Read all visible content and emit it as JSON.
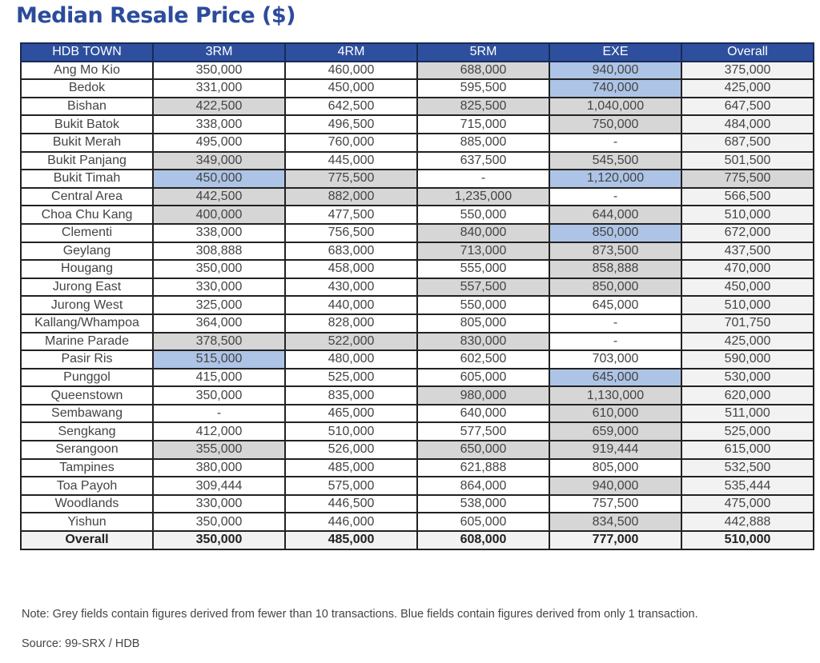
{
  "title": "Median Resale Price ($)",
  "colors": {
    "header": "#2e4f9e",
    "grey_fill": "#d6d6d6",
    "blue_fill": "#adc4e6",
    "title": "#2c4b9b"
  },
  "chart_data": {
    "type": "table",
    "title": "Median Resale Price ($)",
    "columns": [
      "HDB TOWN",
      "3RM",
      "4RM",
      "5RM",
      "EXE",
      "Overall"
    ],
    "rows": [
      {
        "town": "Ang Mo Kio",
        "values": [
          "350,000",
          "460,000",
          "688,000",
          "940,000",
          "375,000"
        ],
        "fill": [
          "",
          "",
          "grey",
          "blue",
          ""
        ]
      },
      {
        "town": "Bedok",
        "values": [
          "331,000",
          "450,000",
          "595,500",
          "740,000",
          "425,000"
        ],
        "fill": [
          "",
          "",
          "",
          "blue",
          ""
        ]
      },
      {
        "town": "Bishan",
        "values": [
          "422,500",
          "642,500",
          "825,500",
          "1,040,000",
          "647,500"
        ],
        "fill": [
          "grey",
          "",
          "grey",
          "grey",
          ""
        ]
      },
      {
        "town": "Bukit Batok",
        "values": [
          "338,000",
          "496,500",
          "715,000",
          "750,000",
          "484,000"
        ],
        "fill": [
          "",
          "",
          "",
          "grey",
          ""
        ]
      },
      {
        "town": "Bukit Merah",
        "values": [
          "495,000",
          "760,000",
          "885,000",
          "-",
          "687,500"
        ],
        "fill": [
          "",
          "",
          "",
          "",
          ""
        ]
      },
      {
        "town": "Bukit Panjang",
        "values": [
          "349,000",
          "445,000",
          "637,500",
          "545,500",
          "501,500"
        ],
        "fill": [
          "grey",
          "",
          "",
          "grey",
          ""
        ]
      },
      {
        "town": "Bukit Timah",
        "values": [
          "450,000",
          "775,500",
          "-",
          "1,120,000",
          "775,500"
        ],
        "fill": [
          "blue",
          "grey",
          "",
          "blue",
          "grey"
        ]
      },
      {
        "town": "Central Area",
        "values": [
          "442,500",
          "882,000",
          "1,235,000",
          "-",
          "566,500"
        ],
        "fill": [
          "grey",
          "grey",
          "grey",
          "",
          ""
        ]
      },
      {
        "town": "Choa Chu Kang",
        "values": [
          "400,000",
          "477,500",
          "550,000",
          "644,000",
          "510,000"
        ],
        "fill": [
          "grey",
          "",
          "",
          "grey",
          ""
        ]
      },
      {
        "town": "Clementi",
        "values": [
          "338,000",
          "756,500",
          "840,000",
          "850,000",
          "672,000"
        ],
        "fill": [
          "",
          "",
          "grey",
          "blue",
          ""
        ]
      },
      {
        "town": "Geylang",
        "values": [
          "308,888",
          "683,000",
          "713,000",
          "873,500",
          "437,500"
        ],
        "fill": [
          "",
          "",
          "grey",
          "grey",
          ""
        ]
      },
      {
        "town": "Hougang",
        "values": [
          "350,000",
          "458,000",
          "555,000",
          "858,888",
          "470,000"
        ],
        "fill": [
          "",
          "",
          "",
          "grey",
          ""
        ]
      },
      {
        "town": "Jurong East",
        "values": [
          "330,000",
          "430,000",
          "557,500",
          "850,000",
          "450,000"
        ],
        "fill": [
          "",
          "",
          "grey",
          "grey",
          ""
        ]
      },
      {
        "town": "Jurong West",
        "values": [
          "325,000",
          "440,000",
          "550,000",
          "645,000",
          "510,000"
        ],
        "fill": [
          "",
          "",
          "",
          "",
          ""
        ]
      },
      {
        "town": "Kallang/Whampoa",
        "values": [
          "364,000",
          "828,000",
          "805,000",
          "-",
          "701,750"
        ],
        "fill": [
          "",
          "",
          "",
          "",
          ""
        ]
      },
      {
        "town": "Marine Parade",
        "values": [
          "378,500",
          "522,000",
          "830,000",
          "-",
          "425,000"
        ],
        "fill": [
          "grey",
          "grey",
          "grey",
          "",
          ""
        ]
      },
      {
        "town": "Pasir Ris",
        "values": [
          "515,000",
          "480,000",
          "602,500",
          "703,000",
          "590,000"
        ],
        "fill": [
          "blue",
          "",
          "",
          "",
          ""
        ]
      },
      {
        "town": "Punggol",
        "values": [
          "415,000",
          "525,000",
          "605,000",
          "645,000",
          "530,000"
        ],
        "fill": [
          "",
          "",
          "",
          "blue",
          ""
        ]
      },
      {
        "town": "Queenstown",
        "values": [
          "350,000",
          "835,000",
          "980,000",
          "1,130,000",
          "620,000"
        ],
        "fill": [
          "",
          "",
          "grey",
          "grey",
          ""
        ]
      },
      {
        "town": "Sembawang",
        "values": [
          "-",
          "465,000",
          "640,000",
          "610,000",
          "511,000"
        ],
        "fill": [
          "",
          "",
          "",
          "grey",
          ""
        ]
      },
      {
        "town": "Sengkang",
        "values": [
          "412,000",
          "510,000",
          "577,500",
          "659,000",
          "525,000"
        ],
        "fill": [
          "",
          "",
          "",
          "grey",
          ""
        ]
      },
      {
        "town": "Serangoon",
        "values": [
          "355,000",
          "526,000",
          "650,000",
          "919,444",
          "615,000"
        ],
        "fill": [
          "grey",
          "",
          "grey",
          "grey",
          ""
        ]
      },
      {
        "town": "Tampines",
        "values": [
          "380,000",
          "485,000",
          "621,888",
          "805,000",
          "532,500"
        ],
        "fill": [
          "",
          "",
          "",
          "",
          ""
        ]
      },
      {
        "town": "Toa Payoh",
        "values": [
          "309,444",
          "575,000",
          "864,000",
          "940,000",
          "535,444"
        ],
        "fill": [
          "",
          "",
          "",
          "grey",
          ""
        ]
      },
      {
        "town": "Woodlands",
        "values": [
          "330,000",
          "446,500",
          "538,000",
          "757,500",
          "475,000"
        ],
        "fill": [
          "",
          "",
          "",
          "",
          ""
        ]
      },
      {
        "town": "Yishun",
        "values": [
          "350,000",
          "446,000",
          "605,000",
          "834,500",
          "442,888"
        ],
        "fill": [
          "",
          "",
          "",
          "grey",
          ""
        ]
      }
    ],
    "total": {
      "town": "Overall",
      "values": [
        "350,000",
        "485,000",
        "608,000",
        "777,000",
        "510,000"
      ]
    }
  },
  "note": "Note: Grey fields contain figures derived from fewer than 10 transactions. Blue fields contain figures derived from only 1 transaction.",
  "source": "Source: 99-SRX / HDB"
}
